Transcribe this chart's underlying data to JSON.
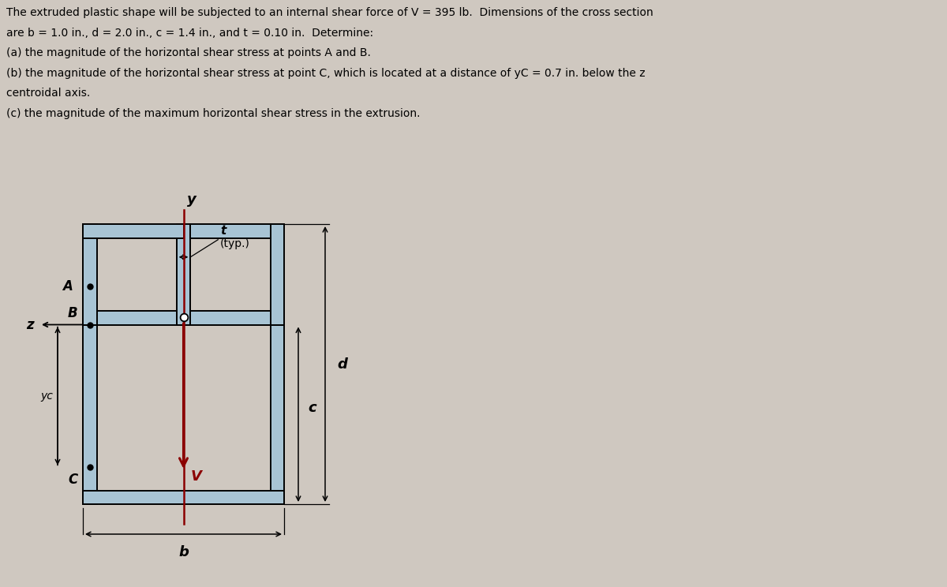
{
  "bg_color": "#cfc8c0",
  "shape_fill": "#a8c4d4",
  "shape_edge": "#000000",
  "y_axis_color": "#8b0000",
  "V_arrow_color": "#8b0000",
  "point_color": "#000000",
  "fig_width": 12.0,
  "fig_height": 7.44,
  "text_lines": [
    "The extruded plastic shape will be subjected to an internal shear force of V = 395 lb.  Dimensions of the cross section",
    "are b = 1.0 in., d = 2.0 in., c = 1.4 in., and t = 0.10 in.  Determine:",
    "(a) the magnitude of the horizontal shear stress at points A and B.",
    "(b) the magnitude of the horizontal shear stress at point C, which is located at a distance of yC = 0.7 in. below the z",
    "centroidal axis.",
    "(c) the magnitude of the maximum horizontal shear stress in the extrusion."
  ]
}
